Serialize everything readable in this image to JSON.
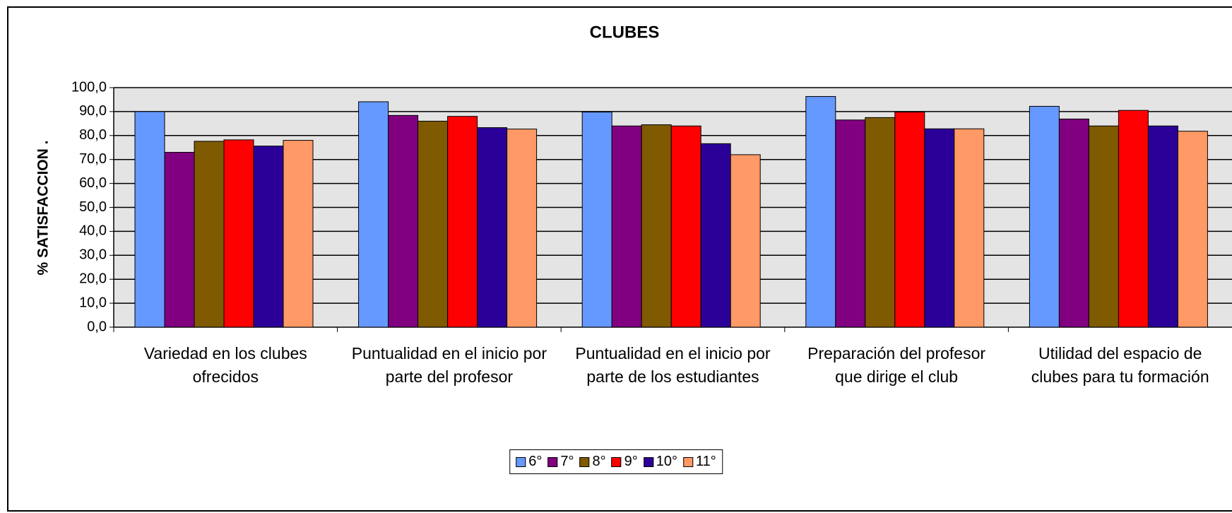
{
  "chart_data": {
    "type": "bar",
    "title": "CLUBES",
    "y_label": "% SATISFACCION  .",
    "categories": [
      "Variedad en los clubes ofrecidos",
      "Puntualidad en el inicio por parte del profesor",
      "Puntualidad en el inicio por parte de los estudiantes",
      "Preparación del profesor que dirige el club",
      "Utilidad del espacio de clubes para tu formación"
    ],
    "series": [
      {
        "name": "6°",
        "color": "#6699ff",
        "values": [
          90,
          94.1,
          89.8,
          96.3,
          92.2
        ]
      },
      {
        "name": "7°",
        "color": "#800080",
        "values": [
          73,
          88.4,
          84,
          86.5,
          86.9
        ]
      },
      {
        "name": "8°",
        "color": "#7f5a00",
        "values": [
          77.6,
          86,
          84.5,
          87.5,
          84
        ]
      },
      {
        "name": "9°",
        "color": "#ff0000",
        "values": [
          78.2,
          88,
          84,
          89.8,
          90.5
        ]
      },
      {
        "name": "10°",
        "color": "#2a0099",
        "values": [
          75.6,
          83.3,
          76.6,
          82.8,
          84
        ]
      },
      {
        "name": "11°",
        "color": "#ff9966",
        "values": [
          78,
          82.7,
          72,
          82.8,
          81.8
        ]
      }
    ],
    "ylim": [
      0,
      100
    ],
    "yticks": [
      {
        "value": 0,
        "label": "0,0"
      },
      {
        "value": 10,
        "label": "10,0"
      },
      {
        "value": 20,
        "label": "20,0"
      },
      {
        "value": 30,
        "label": "30,0"
      },
      {
        "value": 40,
        "label": "40,0"
      },
      {
        "value": 50,
        "label": "50,0"
      },
      {
        "value": 60,
        "label": "60,0"
      },
      {
        "value": 70,
        "label": "70,0"
      },
      {
        "value": 80,
        "label": "80,0"
      },
      {
        "value": 90,
        "label": "90,0"
      },
      {
        "value": 100,
        "label": "100,0"
      }
    ],
    "grid": true,
    "legend": "bottom"
  }
}
